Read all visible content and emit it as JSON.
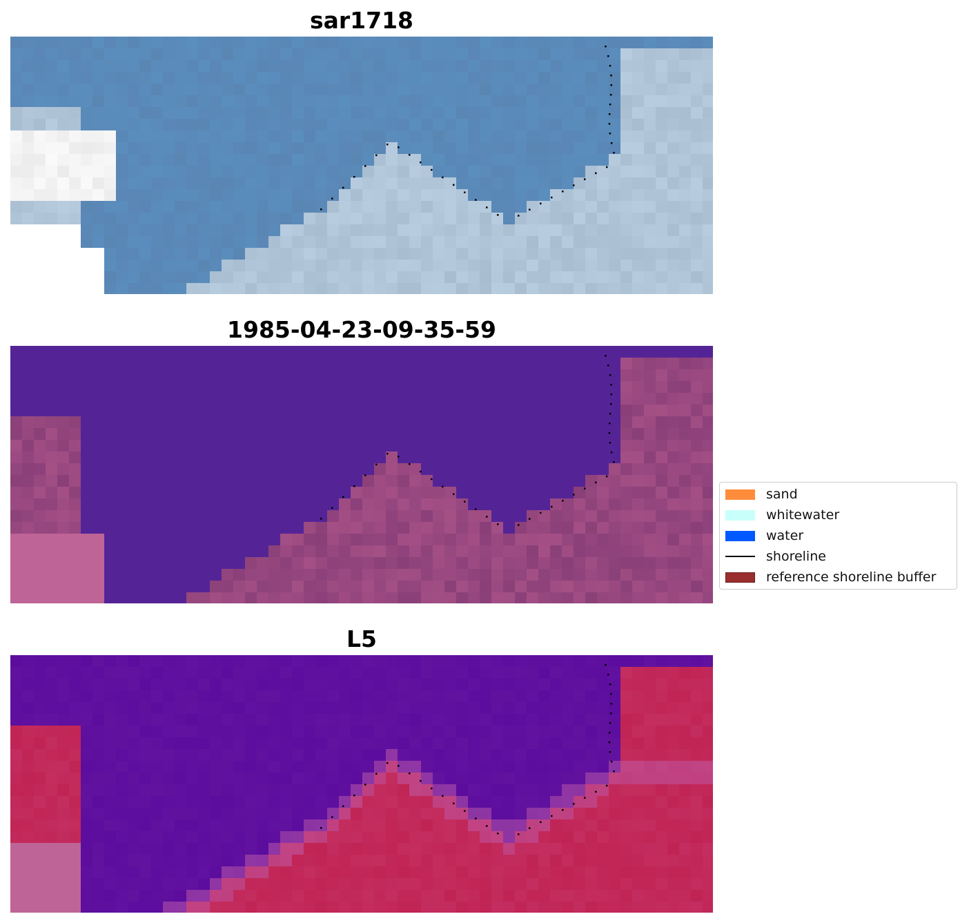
{
  "panels": [
    {
      "title": "sar1718",
      "style": "rgb"
    },
    {
      "title": "1985-04-23-09-35-59",
      "style": "classified"
    },
    {
      "title": "L5",
      "style": "ndwi"
    }
  ],
  "legend": {
    "items": [
      {
        "label": "sand",
        "type": "patch",
        "color": "#ff8c3a"
      },
      {
        "label": "whitewater",
        "type": "patch",
        "color": "#c8fffb"
      },
      {
        "label": "water",
        "type": "patch",
        "color": "#0059ff"
      },
      {
        "label": "shoreline",
        "type": "line",
        "color": "#000000"
      },
      {
        "label": "reference shoreline buffer",
        "type": "patch",
        "color": "#9a2e2e"
      }
    ]
  },
  "colors": {
    "rgb_water": "#5a86b4",
    "rgb_land": "#a8bdd0",
    "classified_water": "#542497",
    "classified_land": "#8a3f78",
    "ndwi_water": "#5c0d9e",
    "ndwi_land": "#c02455"
  }
}
